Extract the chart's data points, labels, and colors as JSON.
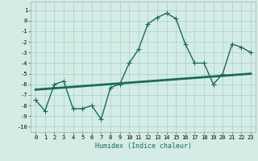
{
  "xlabel": "Humidex (Indice chaleur)",
  "ylabel": "",
  "xlim": [
    -0.5,
    23.5
  ],
  "ylim": [
    -10.5,
    1.8
  ],
  "yticks": [
    1,
    0,
    -1,
    -2,
    -3,
    -4,
    -5,
    -6,
    -7,
    -8,
    -9,
    -10
  ],
  "xticks": [
    0,
    1,
    2,
    3,
    4,
    5,
    6,
    7,
    8,
    9,
    10,
    11,
    12,
    13,
    14,
    15,
    16,
    17,
    18,
    19,
    20,
    21,
    22,
    23
  ],
  "background_color": "#d4ece6",
  "grid_color": "#a8cec8",
  "line_color": "#1a6b5a",
  "line1_x": [
    0,
    1,
    2,
    3,
    4,
    5,
    6,
    7,
    8,
    9,
    10,
    11,
    12,
    13,
    14,
    15,
    16,
    17,
    18,
    19,
    20,
    21,
    22,
    23
  ],
  "line1_y": [
    -7.5,
    -8.5,
    -6.0,
    -5.7,
    -8.3,
    -8.3,
    -8.0,
    -9.3,
    -6.3,
    -6.0,
    -4.0,
    -2.7,
    -0.3,
    0.3,
    0.7,
    0.2,
    -2.2,
    -4.0,
    -4.0,
    -6.0,
    -5.0,
    -2.2,
    -2.5,
    -3.0
  ],
  "line2_x": [
    0,
    23
  ],
  "line2_y": [
    -6.5,
    -5.0
  ],
  "marker": "+",
  "markersize": 4,
  "linewidth": 1.0,
  "linewidth2": 2.0,
  "tick_fontsize": 5,
  "xlabel_fontsize": 6
}
